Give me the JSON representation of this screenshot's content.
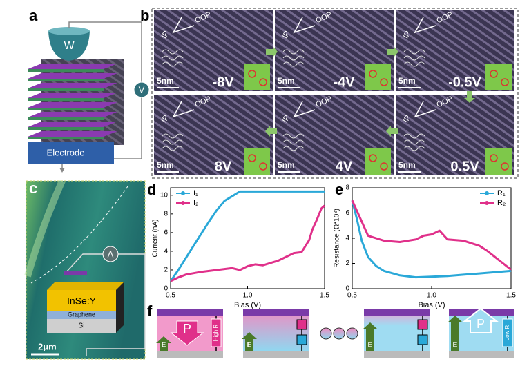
{
  "panel_labels": [
    "a",
    "b",
    "c",
    "d",
    "e",
    "f"
  ],
  "panel_a": {
    "tip": "W",
    "electrode": "Electrode",
    "meter": "V"
  },
  "panel_b": {
    "scale_bar": "5nm",
    "axes": [
      "IP",
      "OOP"
    ],
    "images": [
      {
        "bias": "-8V"
      },
      {
        "bias": "-4V"
      },
      {
        "bias": "-0.5V"
      },
      {
        "bias": "8V"
      },
      {
        "bias": "4V"
      },
      {
        "bias": "0.5V"
      }
    ]
  },
  "panel_c": {
    "meter": "A",
    "layers": [
      "InSe:Y",
      "Graphene",
      "Si"
    ],
    "scale_bar": "2μm"
  },
  "panel_f": {
    "polarization": "P",
    "field": "E",
    "labels": [
      "High R",
      "Low R"
    ]
  },
  "chart_data": [
    {
      "type": "line",
      "xlabel": "Bias (V)",
      "ylabel": "Current (nA)",
      "xlim": [
        0.5,
        1.5
      ],
      "xticks": [
        0.5,
        {
          "value": 1,
          "label": "1.0"
        },
        1.5
      ],
      "ylim": [
        0,
        10.8
      ],
      "yticks": [
        0,
        2,
        4,
        6,
        8,
        10
      ],
      "legend": "upper left",
      "series": [
        {
          "name": "I₁",
          "color": "#2aa8d8",
          "x": [
            0.5,
            0.55,
            0.6,
            0.65,
            0.7,
            0.75,
            0.8,
            0.85,
            0.9,
            0.95,
            1.0,
            1.1,
            1.2,
            1.3,
            1.4,
            1.5
          ],
          "values": [
            0.8,
            2.0,
            3.3,
            4.6,
            5.9,
            7.2,
            8.4,
            9.4,
            9.9,
            10.4,
            10.4,
            10.4,
            10.4,
            10.4,
            10.4,
            10.4
          ]
        },
        {
          "name": "I₂",
          "color": "#e0308a",
          "x": [
            0.5,
            0.55,
            0.6,
            0.7,
            0.8,
            0.9,
            0.95,
            1.0,
            1.05,
            1.1,
            1.2,
            1.25,
            1.3,
            1.35,
            1.4,
            1.42,
            1.45,
            1.48,
            1.5
          ],
          "values": [
            0.8,
            1.2,
            1.5,
            1.8,
            2.0,
            2.2,
            2.0,
            2.4,
            2.6,
            2.5,
            3.0,
            3.4,
            3.8,
            3.9,
            5.2,
            6.3,
            7.4,
            8.6,
            8.9
          ]
        }
      ]
    },
    {
      "type": "line",
      "xlabel": "Bias (V)",
      "ylabel": "Resistance (Ω*10⁸)",
      "xlim": [
        0.5,
        1.5
      ],
      "xticks": [
        0.5,
        {
          "value": 1,
          "label": "1.0"
        },
        1.5
      ],
      "ylim": [
        0,
        8
      ],
      "yticks": [
        0,
        2,
        4,
        6,
        8
      ],
      "legend": "upper right",
      "series": [
        {
          "name": "R₁",
          "color": "#2aa8d8",
          "x": [
            0.5,
            0.53,
            0.56,
            0.6,
            0.65,
            0.7,
            0.8,
            0.9,
            1.0,
            1.1,
            1.2,
            1.3,
            1.4,
            1.5
          ],
          "values": [
            7.0,
            5.5,
            3.8,
            2.5,
            1.8,
            1.4,
            1.05,
            0.9,
            0.95,
            1.0,
            1.1,
            1.2,
            1.3,
            1.4
          ]
        },
        {
          "name": "R₂",
          "color": "#e0308a",
          "x": [
            0.5,
            0.55,
            0.6,
            0.65,
            0.7,
            0.8,
            0.9,
            0.95,
            1.0,
            1.05,
            1.1,
            1.2,
            1.3,
            1.35,
            1.4,
            1.45,
            1.5
          ],
          "values": [
            7.0,
            5.6,
            4.2,
            4.0,
            3.8,
            3.7,
            3.9,
            4.2,
            4.3,
            4.6,
            3.9,
            3.8,
            3.4,
            3.0,
            2.5,
            2.0,
            1.5
          ]
        }
      ]
    }
  ]
}
